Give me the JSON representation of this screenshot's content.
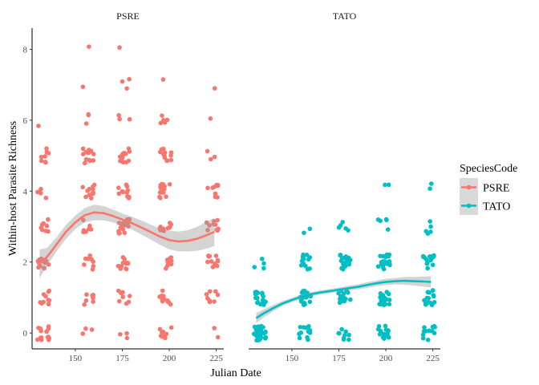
{
  "chart_data": {
    "type": "scatter",
    "xlabel": "Julian Date",
    "ylabel": "Within-host Parasite Richness",
    "xlim": [
      127,
      229
    ],
    "ylim": [
      -0.45,
      8.6
    ],
    "x_ticks": [
      150,
      175,
      200,
      225
    ],
    "y_ticks": [
      0,
      2,
      4,
      6,
      8
    ],
    "grid": false,
    "legend": {
      "title": "SpeciesCode",
      "position": "right",
      "entries": [
        {
          "label": "PSRE",
          "color": "#F8766D"
        },
        {
          "label": "TATO",
          "color": "#00BFC4"
        }
      ]
    },
    "facets": [
      {
        "label": "PSRE",
        "color": "#F8766D",
        "groups": [
          {
            "x": 133,
            "counts": {
              "0": 14,
              "1": 10,
              "2": 14,
              "3": 8,
              "4": 5,
              "5": 8,
              "6": 1
            }
          },
          {
            "x": 157,
            "counts": {
              "0": 3,
              "1": 7,
              "2": 9,
              "3": 7,
              "4": 12,
              "5": 15,
              "6": 3,
              "7": 1,
              "8": 1
            }
          },
          {
            "x": 176,
            "counts": {
              "0": 3,
              "1": 9,
              "2": 11,
              "3": 15,
              "4": 11,
              "5": 13,
              "6": 3,
              "7": 3,
              "8": 1
            }
          },
          {
            "x": 198,
            "counts": {
              "0": 9,
              "1": 12,
              "2": 9,
              "3": 11,
              "4": 14,
              "5": 12,
              "6": 5,
              "7": 1
            }
          },
          {
            "x": 223,
            "counts": {
              "0": 2,
              "1": 8,
              "2": 12,
              "3": 10,
              "4": 9,
              "5": 3,
              "6": 1,
              "7": 1
            }
          }
        ],
        "smooth": {
          "x": [
            131,
            135,
            140,
            145,
            150,
            155,
            160,
            165,
            170,
            175,
            180,
            185,
            190,
            195,
            200,
            205,
            210,
            215,
            220,
            224
          ],
          "y": [
            1.95,
            2.15,
            2.5,
            2.85,
            3.12,
            3.32,
            3.4,
            3.38,
            3.3,
            3.2,
            3.1,
            2.98,
            2.85,
            2.72,
            2.62,
            2.58,
            2.6,
            2.66,
            2.76,
            2.85
          ],
          "lower": [
            1.55,
            1.9,
            2.3,
            2.65,
            2.93,
            3.12,
            3.18,
            3.18,
            3.12,
            3.03,
            2.92,
            2.78,
            2.64,
            2.49,
            2.36,
            2.3,
            2.3,
            2.32,
            2.38,
            2.45
          ],
          "upper": [
            2.35,
            2.4,
            2.7,
            3.05,
            3.31,
            3.52,
            3.62,
            3.58,
            3.48,
            3.37,
            3.28,
            3.18,
            3.06,
            2.95,
            2.88,
            2.86,
            2.9,
            3.0,
            3.14,
            3.25
          ]
        }
      },
      {
        "label": "TATO",
        "color": "#00BFC4",
        "groups": [
          {
            "x": 133,
            "counts": {
              "0": 35,
              "1": 18,
              "2": 4
            }
          },
          {
            "x": 157,
            "counts": {
              "0": 12,
              "1": 24,
              "2": 13,
              "3": 2
            }
          },
          {
            "x": 178,
            "counts": {
              "0": 9,
              "1": 16,
              "2": 20,
              "3": 5
            }
          },
          {
            "x": 199,
            "counts": {
              "0": 16,
              "1": 20,
              "2": 20,
              "3": 5,
              "4": 2
            }
          },
          {
            "x": 223,
            "counts": {
              "0": 13,
              "1": 20,
              "2": 14,
              "3": 5,
              "4": 2
            }
          }
        ],
        "smooth": {
          "x": [
            131,
            135,
            140,
            145,
            150,
            155,
            160,
            165,
            170,
            175,
            180,
            185,
            190,
            195,
            200,
            205,
            210,
            215,
            220,
            224
          ],
          "y": [
            0.42,
            0.55,
            0.7,
            0.83,
            0.93,
            1.02,
            1.09,
            1.14,
            1.18,
            1.22,
            1.26,
            1.3,
            1.35,
            1.4,
            1.44,
            1.46,
            1.47,
            1.46,
            1.45,
            1.44
          ],
          "lower": [
            0.28,
            0.44,
            0.61,
            0.76,
            0.87,
            0.96,
            1.03,
            1.08,
            1.12,
            1.16,
            1.19,
            1.23,
            1.27,
            1.32,
            1.35,
            1.37,
            1.36,
            1.34,
            1.31,
            1.28
          ],
          "upper": [
            0.56,
            0.66,
            0.79,
            0.9,
            0.99,
            1.08,
            1.15,
            1.2,
            1.24,
            1.28,
            1.33,
            1.37,
            1.43,
            1.48,
            1.53,
            1.55,
            1.58,
            1.58,
            1.59,
            1.6
          ]
        }
      }
    ]
  }
}
